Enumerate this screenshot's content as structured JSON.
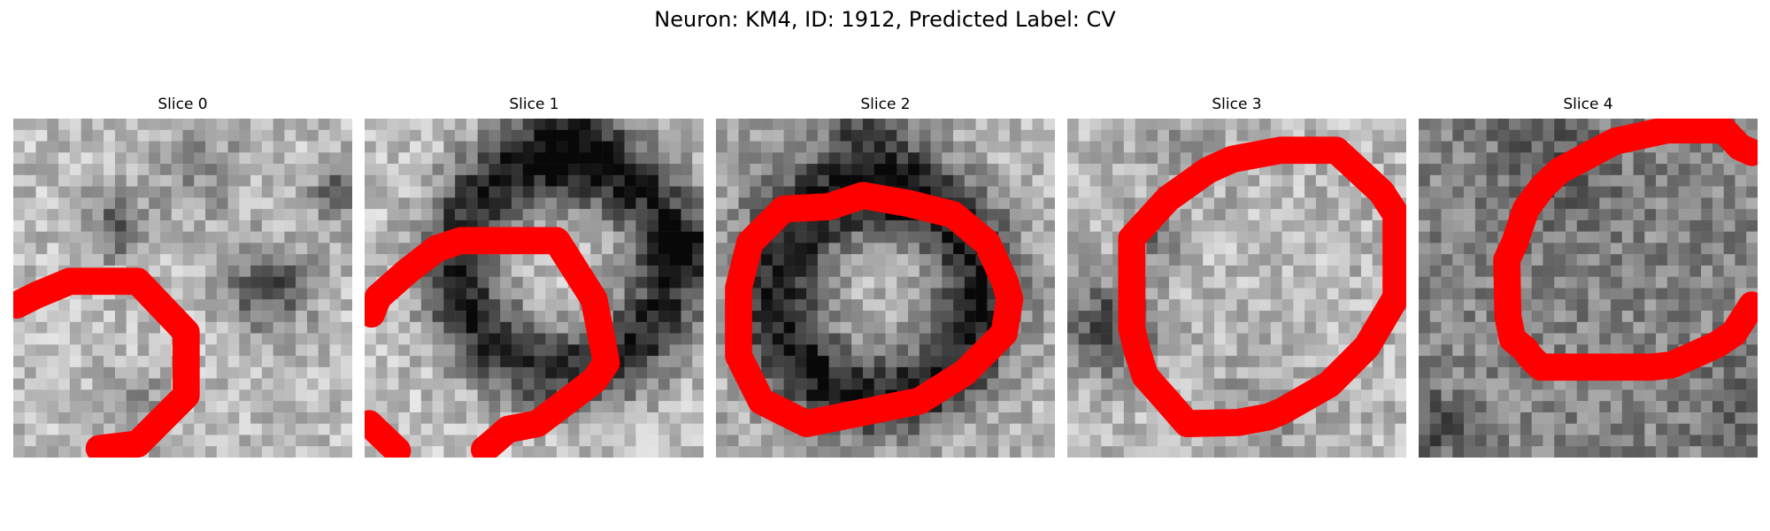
{
  "figure": {
    "title": "Neuron: KM4, ID: 1912, Predicted Label: CV"
  },
  "colors": {
    "contour": "#ff0000",
    "colormap": "grayscale"
  },
  "panels": [
    {
      "title": "Slice 0",
      "seed": 11,
      "base": 0.74,
      "ring": null,
      "blobs": [
        [
          0.3,
          0.32,
          0.07,
          -0.35
        ],
        [
          0.75,
          0.5,
          0.09,
          -0.45
        ],
        [
          0.97,
          0.22,
          0.06,
          -0.4
        ],
        [
          0.55,
          0.15,
          0.1,
          -0.2
        ],
        [
          0.35,
          0.85,
          0.08,
          -0.2
        ]
      ]
    },
    {
      "title": "Slice 1",
      "seed": 23,
      "base": 0.76,
      "ring": [
        0.59,
        0.43,
        0.31,
        0.09,
        -0.6
      ],
      "blobs": [
        [
          0.95,
          0.38,
          0.05,
          -0.45
        ],
        [
          0.6,
          0.05,
          0.12,
          -0.3
        ]
      ]
    },
    {
      "title": "Slice 2",
      "seed": 37,
      "base": 0.7,
      "ring": [
        0.48,
        0.52,
        0.3,
        0.09,
        -0.6
      ],
      "blobs": [
        [
          0.45,
          0.05,
          0.12,
          -0.35
        ],
        [
          0.1,
          0.2,
          0.12,
          -0.1
        ]
      ]
    },
    {
      "title": "Slice 3",
      "seed": 51,
      "base": 0.72,
      "ring": null,
      "blobs": [
        [
          0.12,
          0.62,
          0.1,
          -0.45
        ],
        [
          0.25,
          0.35,
          0.05,
          -0.3
        ],
        [
          0.55,
          0.9,
          0.12,
          -0.15
        ],
        [
          0.35,
          0.1,
          0.1,
          -0.12
        ]
      ]
    },
    {
      "title": "Slice 4",
      "seed": 67,
      "base": 0.52,
      "ring": null,
      "blobs": [
        [
          0.4,
          0.15,
          0.12,
          -0.2
        ],
        [
          0.95,
          0.85,
          0.1,
          -0.15
        ],
        [
          0.05,
          0.9,
          0.06,
          -0.25
        ]
      ]
    }
  ]
}
